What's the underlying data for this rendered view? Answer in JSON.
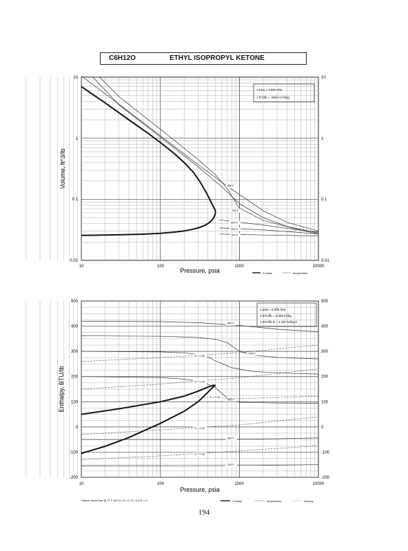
{
  "header": {
    "formula": "C6H12O",
    "name": "ETHYL ISOPROPYL KETONE"
  },
  "page_number": "194",
  "chart_data": [
    {
      "type": "line",
      "xlabel": "Pressure,  psia",
      "ylabel": "Volume, ft^3/lb",
      "xscale": "log",
      "yscale": "log",
      "xlim": [
        10,
        10000
      ],
      "ylim": [
        0.01,
        10
      ],
      "x_ticks": [
        "10",
        "100",
        "1000",
        "10000"
      ],
      "y_ticks": [
        "0.01",
        "0.1",
        "1",
        "10"
      ],
      "y_ticks_right": [
        "0.01",
        "0.1",
        "1",
        "10"
      ],
      "grid": true,
      "note": [
        "1 psia  =  6.895 kPa",
        "1 ft^3/lb  =  .0624 m^3/kg"
      ],
      "legend": [
        "2 phase",
        "temperature"
      ],
      "series": [
        {
          "kind": "2 phase",
          "x": [
            10,
            20,
            40,
            70,
            100,
            150,
            200,
            260,
            320,
            380,
            430,
            470,
            490,
            500
          ],
          "y": [
            7.0,
            3.8,
            2.0,
            1.2,
            0.85,
            0.56,
            0.4,
            0.28,
            0.19,
            0.13,
            0.095,
            0.075,
            0.068,
            0.062
          ]
        },
        {
          "kind": "2 phase",
          "x": [
            500,
            490,
            470,
            440,
            400,
            350,
            300,
            250,
            200,
            150,
            100,
            60,
            30,
            15,
            10
          ],
          "y": [
            0.062,
            0.055,
            0.049,
            0.044,
            0.04,
            0.0365,
            0.034,
            0.032,
            0.0303,
            0.029,
            0.0277,
            0.0268,
            0.0262,
            0.0258,
            0.0256
          ]
        },
        {
          "name": "800 F",
          "x": [
            10,
            30,
            100,
            300,
            600,
            1000,
            2000,
            4000,
            10000
          ],
          "y": [
            10.5,
            3.6,
            1.1,
            0.37,
            0.19,
            0.12,
            0.065,
            0.042,
            0.03
          ]
        },
        {
          "name": "700 F",
          "x": [
            14,
            30,
            100,
            300,
            600,
            1000,
            2000,
            4000,
            10000
          ],
          "y": [
            10,
            3.5,
            1.05,
            0.34,
            0.16,
            0.085,
            0.05,
            0.036,
            0.028
          ]
        },
        {
          "x": [
            17,
            30,
            100,
            300,
            500,
            700,
            1000,
            2000,
            5000,
            10000
          ],
          "y": [
            10,
            4.8,
            1.4,
            0.45,
            0.25,
            0.15,
            0.072,
            0.045,
            0.033,
            0.027
          ]
        },
        {
          "name": "500 F",
          "x": [
            550,
            1000,
            2000,
            5000,
            10000
          ],
          "y": [
            0.046,
            0.042,
            0.038,
            0.032,
            0.029
          ]
        },
        {
          "name": "300 F",
          "x": [
            560,
            1000,
            2000,
            5000,
            10000
          ],
          "y": [
            0.034,
            0.033,
            0.0315,
            0.029,
            0.027
          ]
        },
        {
          "name": "100 F",
          "x": [
            560,
            1000,
            2000,
            5000,
            10000
          ],
          "y": [
            0.027,
            0.0265,
            0.026,
            0.0255,
            0.025
          ]
        }
      ]
    },
    {
      "type": "line",
      "xlabel": "Pressure,  psia",
      "ylabel": "Enthalpy, BTU/lb",
      "xscale": "log",
      "xlim": [
        10,
        10000
      ],
      "ylim": [
        -200,
        500
      ],
      "x_ticks": [
        "10",
        "100",
        "1000",
        "10000"
      ],
      "y_ticks": [
        "-200",
        "-100",
        "0",
        "100",
        "200",
        "300",
        "400",
        "500"
      ],
      "y_ticks_right": [
        "-200",
        "-100",
        "0",
        "100",
        "200",
        "300",
        "400",
        "500"
      ],
      "grid": true,
      "note": [
        "1 psia  =  6.895 kPa",
        "1 BTU/lb  =  2.326 kJ/kg",
        "1 BTU/lb R  =  4.187 kJ/kg K"
      ],
      "legend": [
        "2 phase",
        "temperature",
        "entropy"
      ],
      "footnote": "Datum: Ideal Gas @ 77 F (25 C),  H = 0,  S = 0 & P = 0",
      "series": [
        {
          "kind": "2 phase",
          "x": [
            10,
            30,
            100,
            200,
            300,
            400,
            460,
            500
          ],
          "y": [
            50,
            72,
            100,
            122,
            142,
            158,
            165,
            165
          ]
        },
        {
          "kind": "2 phase",
          "x": [
            500,
            470,
            400,
            300,
            200,
            100,
            40,
            20,
            10
          ],
          "y": [
            165,
            160,
            138,
            100,
            62,
            14,
            -42,
            -77,
            -105
          ]
        },
        {
          "kind": "temperature",
          "name": "800 F",
          "x": [
            10,
            100,
            300,
            1000,
            3000,
            10000
          ],
          "y": [
            420,
            418,
            414,
            403,
            388,
            378
          ]
        },
        {
          "kind": "temperature",
          "name": "700 F",
          "x": [
            10,
            100,
            300,
            500,
            700,
            1000,
            1500,
            3000,
            10000
          ],
          "y": [
            362,
            360,
            355,
            348,
            335,
            300,
            285,
            276,
            270
          ]
        },
        {
          "kind": "temperature",
          "x": [
            10,
            100,
            200,
            300,
            400,
            500,
            800,
            1500,
            5000,
            10000
          ],
          "y": [
            300,
            298,
            294,
            288,
            278,
            262,
            235,
            220,
            212,
            210
          ]
        },
        {
          "kind": "temperature",
          "name": "500 F",
          "x": [
            10,
            100,
            200,
            350,
            500,
            700,
            1000,
            3000,
            10000
          ],
          "y": [
            200,
            196,
            190,
            178,
            155,
            115,
            98,
            95,
            94
          ]
        },
        {
          "kind": "temperature",
          "name": "300 F",
          "x": [
            10,
            500,
            3000,
            10000
          ],
          "y": [
            -50,
            -50,
            -47,
            -44
          ]
        },
        {
          "kind": "temperature",
          "name": "100 F",
          "x": [
            10,
            500,
            3000,
            10000
          ],
          "y": [
            -155,
            -154,
            -152,
            -150
          ]
        },
        {
          "kind": "entropy",
          "name": "S = 0.31",
          "x": [
            10,
            100,
            1000,
            10000
          ],
          "y": [
            260,
            275,
            295,
            325
          ]
        },
        {
          "kind": "entropy",
          "name": "S = 0.23",
          "x": [
            10,
            100,
            1000,
            10000
          ],
          "y": [
            150,
            170,
            195,
            230
          ]
        },
        {
          "kind": "entropy",
          "name": "S = 0.15",
          "x": [
            300,
            1000,
            10000
          ],
          "y": [
            118,
            112,
            122
          ]
        },
        {
          "kind": "entropy",
          "name": "S = 0.01",
          "x": [
            10,
            100,
            1000,
            10000
          ],
          "y": [
            -30,
            -12,
            8,
            40
          ]
        },
        {
          "kind": "entropy",
          "name": "S = 0.10",
          "x": [
            10,
            100,
            1000,
            10000
          ],
          "y": [
            -130,
            -115,
            -95,
            -75
          ]
        }
      ]
    }
  ]
}
